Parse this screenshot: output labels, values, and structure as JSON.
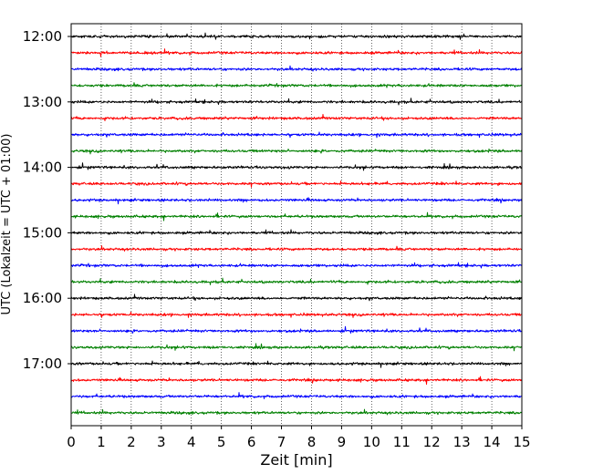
{
  "chart_data": {
    "type": "line",
    "title": "",
    "xlabel": "Zeit  [min]",
    "ylabel": "UTC (Lokalzeit = UTC + 01:00)",
    "xlim": [
      0,
      15
    ],
    "x_ticks": [
      "0",
      "1",
      "2",
      "3",
      "4",
      "5",
      "6",
      "7",
      "8",
      "9",
      "10",
      "11",
      "12",
      "13",
      "14",
      "15"
    ],
    "y_ticks": [
      "12:00",
      "13:00",
      "14:00",
      "15:00",
      "16:00",
      "17:00"
    ],
    "grid": "vertical dotted lines at every minute",
    "trace_interval_minutes": 15,
    "trace_start": "12:00",
    "trace_end": "17:45",
    "trace_count": 24,
    "trace_colors": [
      "#000000",
      "#ff0000",
      "#0000ff",
      "#008000"
    ],
    "series": [
      {
        "start": "12:00",
        "color": "#000000"
      },
      {
        "start": "12:15",
        "color": "#ff0000"
      },
      {
        "start": "12:30",
        "color": "#0000ff"
      },
      {
        "start": "12:45",
        "color": "#008000"
      },
      {
        "start": "13:00",
        "color": "#000000"
      },
      {
        "start": "13:15",
        "color": "#ff0000"
      },
      {
        "start": "13:30",
        "color": "#0000ff"
      },
      {
        "start": "13:45",
        "color": "#008000"
      },
      {
        "start": "14:00",
        "color": "#000000"
      },
      {
        "start": "14:15",
        "color": "#ff0000"
      },
      {
        "start": "14:30",
        "color": "#0000ff"
      },
      {
        "start": "14:45",
        "color": "#008000"
      },
      {
        "start": "15:00",
        "color": "#000000"
      },
      {
        "start": "15:15",
        "color": "#ff0000"
      },
      {
        "start": "15:30",
        "color": "#0000ff"
      },
      {
        "start": "15:45",
        "color": "#008000"
      },
      {
        "start": "16:00",
        "color": "#000000"
      },
      {
        "start": "16:15",
        "color": "#ff0000"
      },
      {
        "start": "16:30",
        "color": "#0000ff"
      },
      {
        "start": "16:45",
        "color": "#008000"
      },
      {
        "start": "17:00",
        "color": "#000000"
      },
      {
        "start": "17:15",
        "color": "#ff0000"
      },
      {
        "start": "17:30",
        "color": "#0000ff"
      },
      {
        "start": "17:45",
        "color": "#008000"
      }
    ]
  }
}
